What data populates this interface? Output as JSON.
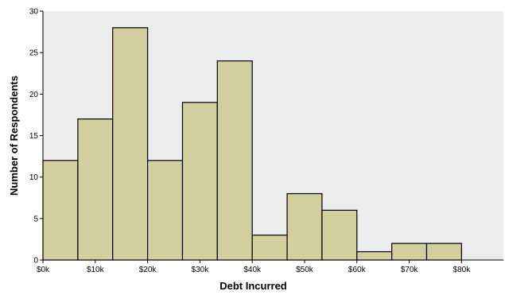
{
  "chart_data": {
    "type": "bar",
    "title": "",
    "xlabel": "Debt Incurred",
    "ylabel": "Number of Respondents",
    "bin_edges_k": [
      0,
      6.67,
      13.33,
      20,
      26.67,
      33.33,
      40,
      46.67,
      53.33,
      60,
      66.67,
      73.33,
      80
    ],
    "values": [
      12,
      17,
      28,
      12,
      19,
      24,
      3,
      8,
      6,
      1,
      2,
      2
    ],
    "xlim_k": [
      0,
      88
    ],
    "ylim": [
      0,
      30
    ],
    "x_ticks": [
      {
        "value": 0,
        "label": "$0k"
      },
      {
        "value": 10,
        "label": "$10k"
      },
      {
        "value": 20,
        "label": "$20k"
      },
      {
        "value": 30,
        "label": "$30k"
      },
      {
        "value": 40,
        "label": "$40k"
      },
      {
        "value": 50,
        "label": "$50k"
      },
      {
        "value": 60,
        "label": "$60k"
      },
      {
        "value": 70,
        "label": "$70k"
      },
      {
        "value": 80,
        "label": "$80k"
      }
    ],
    "y_ticks": [
      {
        "value": 0,
        "label": "0"
      },
      {
        "value": 5,
        "label": "5"
      },
      {
        "value": 10,
        "label": "10"
      },
      {
        "value": 15,
        "label": "15"
      },
      {
        "value": 20,
        "label": "20"
      },
      {
        "value": 25,
        "label": "25"
      },
      {
        "value": 30,
        "label": "30"
      }
    ],
    "colors": {
      "plot_background": "#ececec",
      "bar_fill": "#d3ce9e",
      "bar_stroke": "#000000"
    },
    "grid": false
  }
}
